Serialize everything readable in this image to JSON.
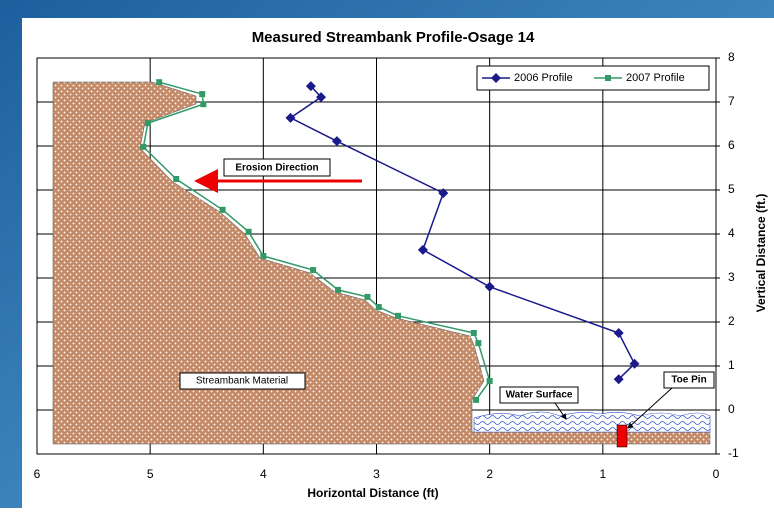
{
  "chart_data": {
    "type": "line",
    "title": "Measured Streambank Profile-Osage 14",
    "x_label": "Horizontal Distance (ft)",
    "y_label": "Vertical Distance (ft.)",
    "xlim": [
      6,
      0
    ],
    "xticks": [
      6,
      5,
      4,
      3,
      2,
      1,
      0
    ],
    "ylim": [
      -1,
      8
    ],
    "yticks": [
      -1,
      0,
      1,
      2,
      3,
      4,
      5,
      6,
      7,
      8
    ],
    "grid": true,
    "legend": "top-right",
    "series": [
      {
        "name": "2006 Profile",
        "color": "#1a1a8c",
        "marker": "diamond",
        "x": [
          3.58,
          3.49,
          3.76,
          3.35,
          2.41,
          2.59,
          2.0,
          0.86,
          0.72,
          0.86
        ],
        "values": [
          7.36,
          7.11,
          6.64,
          6.11,
          4.93,
          3.64,
          2.8,
          1.75,
          1.05,
          0.7
        ]
      },
      {
        "name": "2007 Profile",
        "color": "#339966",
        "marker": "square",
        "x": [
          4.92,
          4.54,
          4.53,
          5.02,
          5.06,
          4.77,
          4.36,
          4.13,
          4.0,
          3.56,
          3.34,
          3.08,
          2.98,
          2.81,
          2.14,
          2.1,
          2.0,
          2.12
        ],
        "values": [
          7.45,
          7.18,
          6.95,
          6.52,
          5.98,
          5.25,
          4.55,
          4.05,
          3.5,
          3.18,
          2.73,
          2.57,
          2.34,
          2.14,
          1.75,
          1.52,
          0.66,
          0.23
        ]
      }
    ],
    "annotations": [
      "Erosion Direction",
      "Streambank Material",
      "Water Surface",
      "Toe Pin"
    ]
  }
}
